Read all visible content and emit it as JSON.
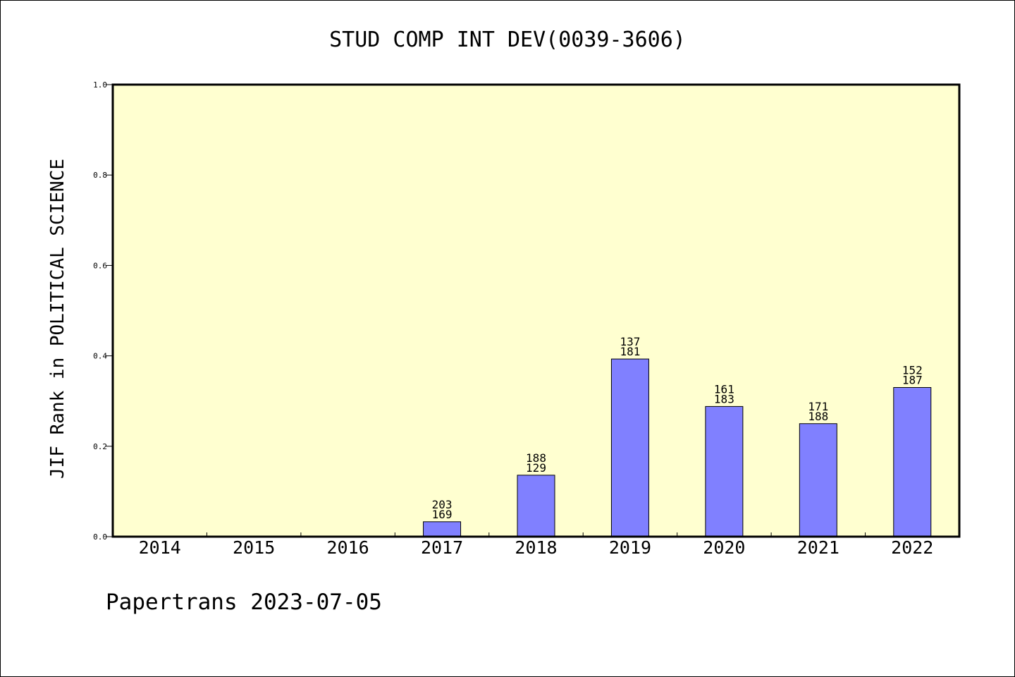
{
  "chart_data": {
    "type": "bar",
    "title": "STUD COMP INT DEV(0039-3606)",
    "xlabel": "",
    "ylabel": "JIF Rank in POLITICAL SCIENCE",
    "ylim": [
      0,
      1.0
    ],
    "yticks": [
      "0.0",
      "0.2",
      "0.4",
      "0.6",
      "0.8",
      "1.0"
    ],
    "categories": [
      "2014",
      "2015",
      "2016",
      "2017",
      "2018",
      "2019",
      "2020",
      "2021",
      "2022"
    ],
    "values": [
      null,
      null,
      null,
      0.033,
      0.136,
      0.393,
      0.288,
      0.25,
      0.33
    ],
    "labels_top": [
      "",
      "",
      "",
      "203",
      "188",
      "137",
      "161",
      "171",
      "152"
    ],
    "labels_bottom": [
      "",
      "",
      "",
      "169",
      "129",
      "181",
      "183",
      "188",
      "187"
    ],
    "colors": {
      "plot_background": "#ffffd0",
      "bar_fill": "#8080ff",
      "bar_stroke": "#000000"
    },
    "grid": false,
    "legend": "none"
  },
  "footer": "Papertrans 2023-07-05"
}
